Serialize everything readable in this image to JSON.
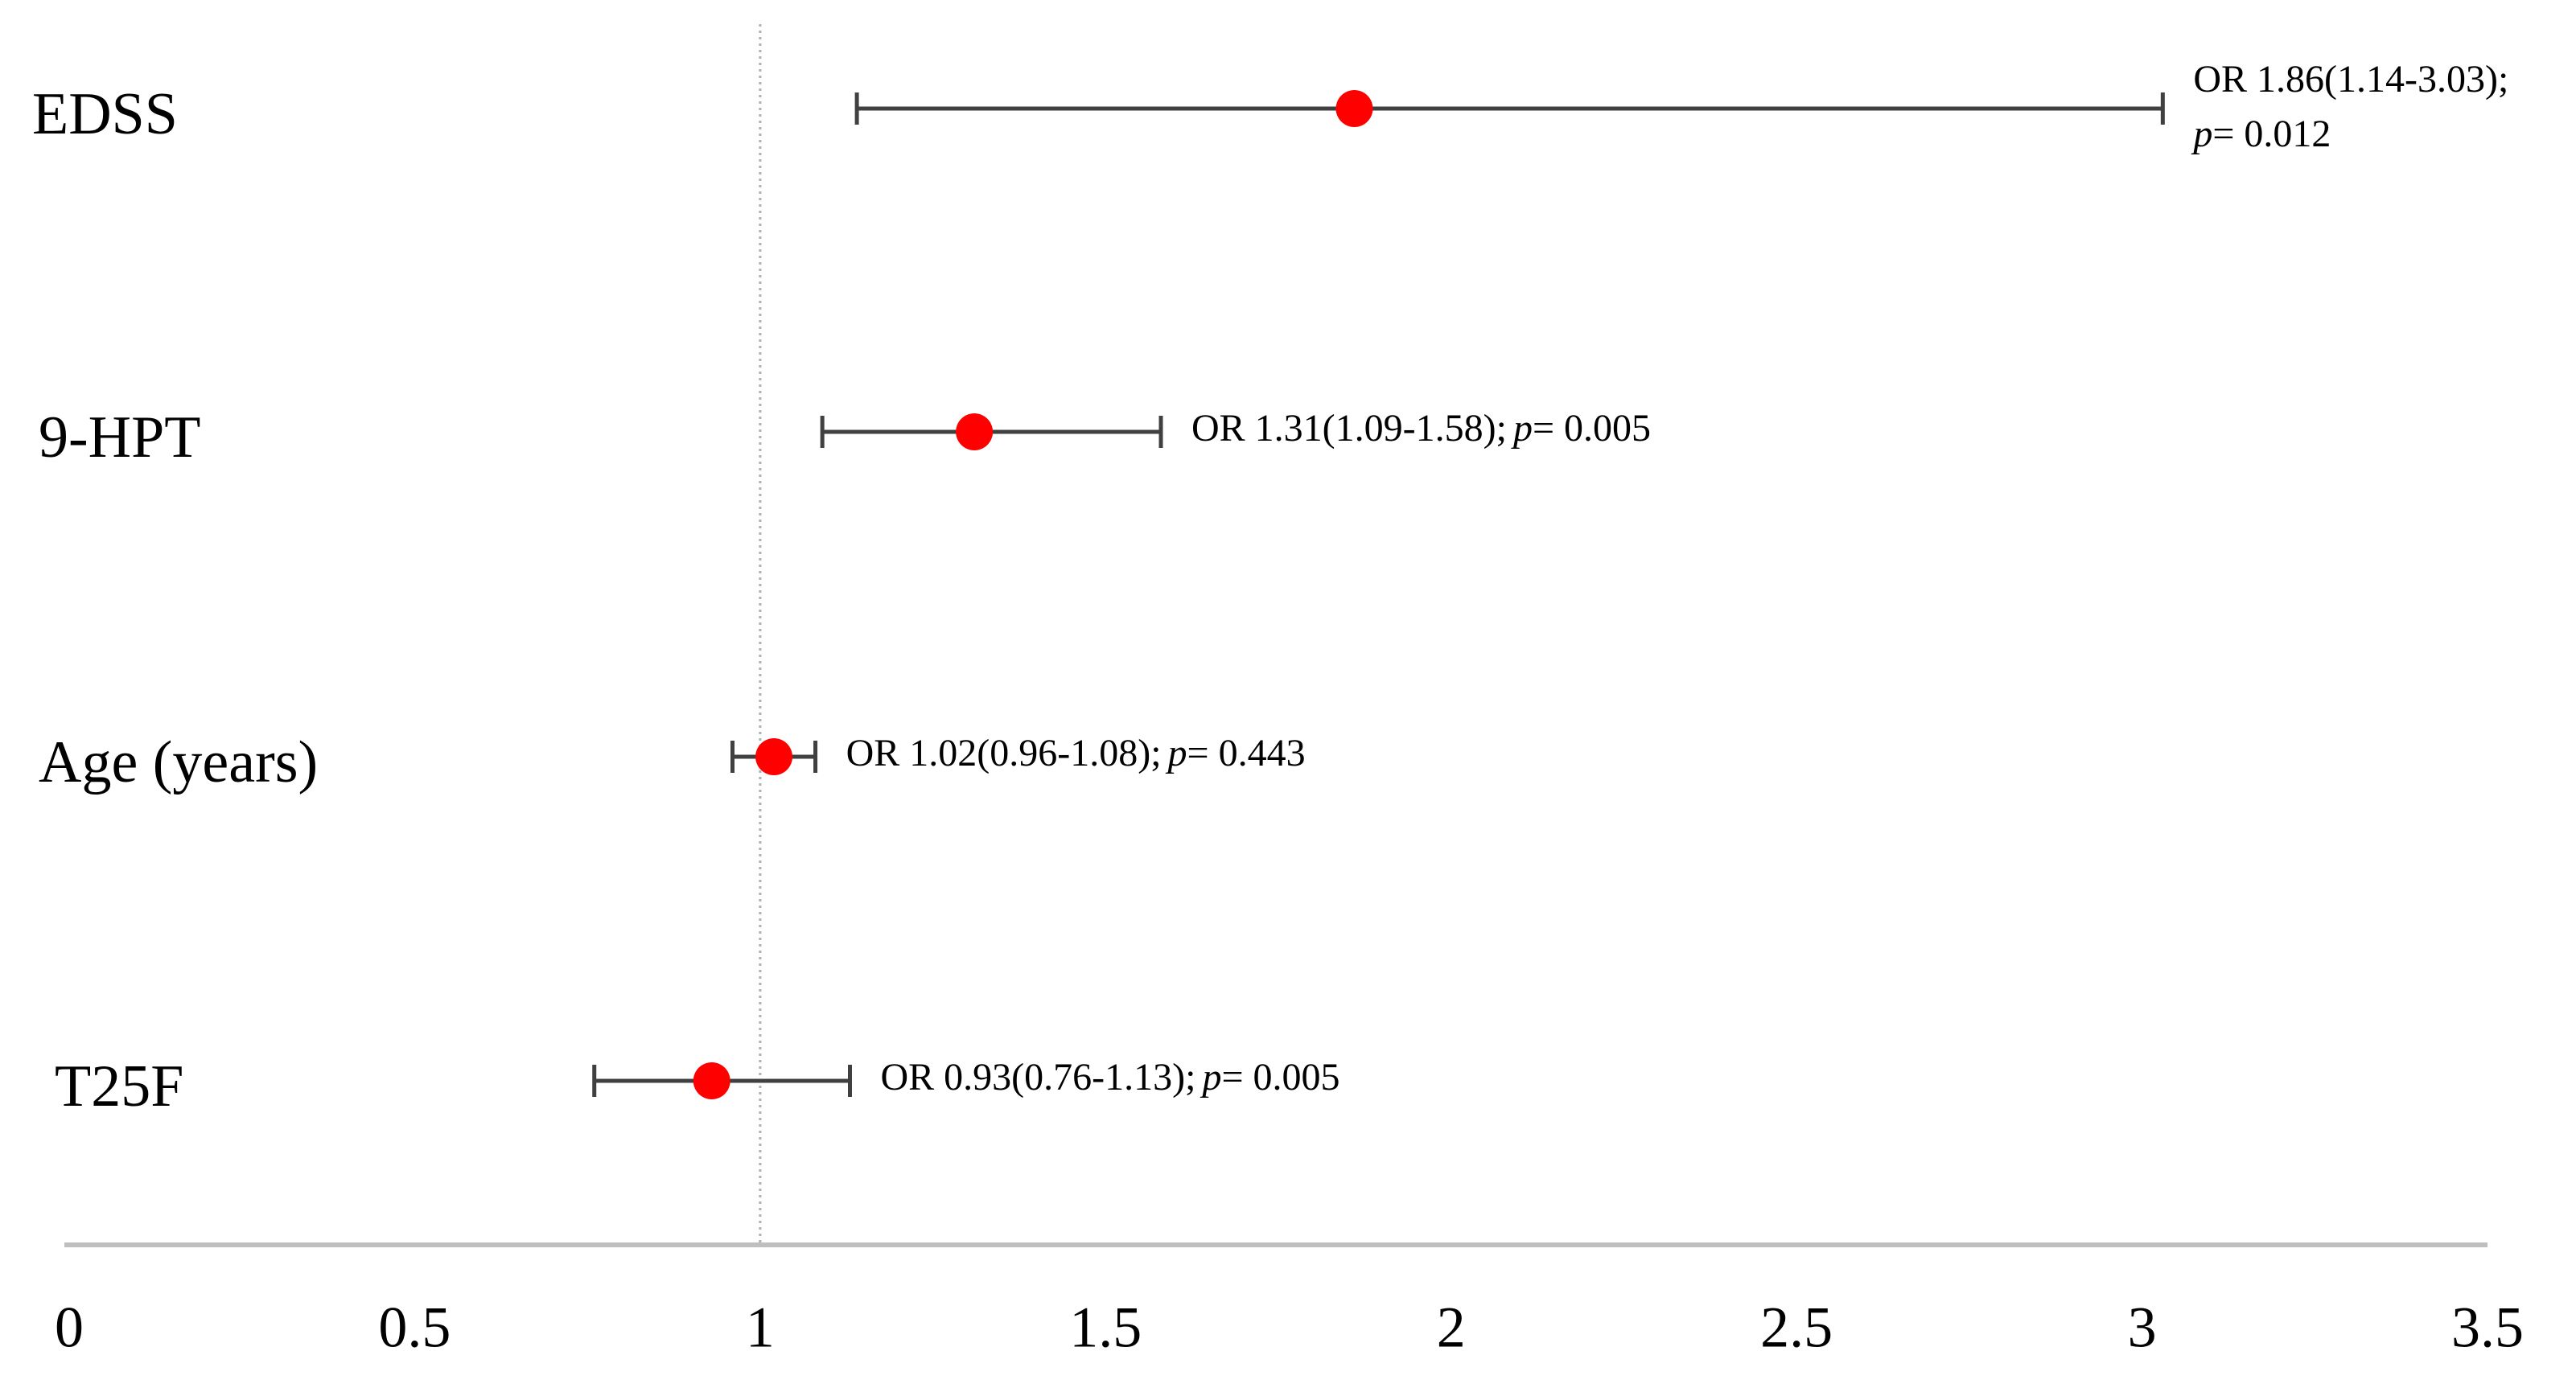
{
  "chart_data": {
    "type": "forest",
    "categories": [
      "EDSS",
      "9-HPT",
      "Age (years)",
      "T25F"
    ],
    "values": [
      1.86,
      1.31,
      1.02,
      0.93
    ],
    "lower": [
      1.14,
      1.09,
      0.96,
      0.76
    ],
    "upper": [
      3.03,
      1.58,
      1.08,
      1.13
    ],
    "value_labels": [
      {
        "text": "OR 1.86(1.14-3.03);",
        "p": "p",
        "p_text": "= 0.012"
      },
      {
        "text": "OR 1.31(1.09-1.58);",
        "p": "p",
        "p_text": "= 0.005"
      },
      {
        "text": "OR 1.02(0.96-1.08);",
        "p": "p",
        "p_text": "= 0.443"
      },
      {
        "text": "OR 0.93(0.76-1.13);",
        "p": "p",
        "p_text": "= 0.005"
      }
    ],
    "color": "#ff0000",
    "whisker_color": "#404040",
    "xlim": [
      0,
      3.5
    ],
    "xticks": [
      0,
      0.5,
      1,
      1.5,
      2,
      2.5,
      3,
      3.5
    ],
    "reference_line": 1
  }
}
